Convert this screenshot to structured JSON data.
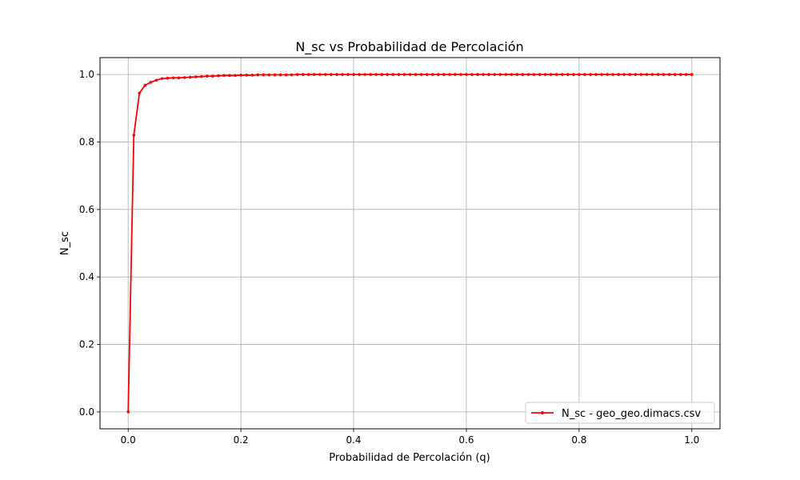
{
  "chart_data": {
    "type": "line",
    "title": "N_sc vs Probabilidad de Percolación",
    "xlabel": "Probabilidad de Percolación (q)",
    "ylabel": "N_sc",
    "xlim": [
      -0.05,
      1.05
    ],
    "ylim": [
      -0.05,
      1.05
    ],
    "xticks": [
      0.0,
      0.2,
      0.4,
      0.6,
      0.8,
      1.0
    ],
    "xtick_labels": [
      "0.0",
      "0.2",
      "0.4",
      "0.6",
      "0.8",
      "1.0"
    ],
    "yticks": [
      0.0,
      0.2,
      0.4,
      0.6,
      0.8,
      1.0
    ],
    "ytick_labels": [
      "0.0",
      "0.2",
      "0.4",
      "0.6",
      "0.8",
      "1.0"
    ],
    "grid": true,
    "legend_position": "lower-right",
    "series": [
      {
        "name": "N_sc - geo_geo.dimacs.csv",
        "color": "#ff0000",
        "marker": "dot",
        "x": [
          0.0,
          0.01,
          0.02,
          0.03,
          0.04,
          0.05,
          0.06,
          0.07,
          0.08,
          0.09,
          0.1,
          0.11,
          0.12,
          0.13,
          0.14,
          0.15,
          0.16,
          0.17,
          0.18,
          0.19,
          0.2,
          0.21,
          0.22,
          0.23,
          0.24,
          0.25,
          0.26,
          0.27,
          0.28,
          0.29,
          0.3,
          0.31,
          0.32,
          0.33,
          0.34,
          0.35,
          0.36,
          0.37,
          0.38,
          0.39,
          0.4,
          0.41,
          0.42,
          0.43,
          0.44,
          0.45,
          0.46,
          0.47,
          0.48,
          0.49,
          0.5,
          0.51,
          0.52,
          0.53,
          0.54,
          0.55,
          0.56,
          0.57,
          0.58,
          0.59,
          0.6,
          0.61,
          0.62,
          0.63,
          0.64,
          0.65,
          0.66,
          0.67,
          0.68,
          0.69,
          0.7,
          0.71,
          0.72,
          0.73,
          0.74,
          0.75,
          0.76,
          0.77,
          0.78,
          0.79,
          0.8,
          0.81,
          0.82,
          0.83,
          0.84,
          0.85,
          0.86,
          0.87,
          0.88,
          0.89,
          0.9,
          0.91,
          0.92,
          0.93,
          0.94,
          0.95,
          0.96,
          0.97,
          0.98,
          0.99,
          1.0
        ],
        "y": [
          0.0,
          0.82,
          0.945,
          0.968,
          0.977,
          0.983,
          0.988,
          0.989,
          0.99,
          0.99,
          0.991,
          0.992,
          0.993,
          0.994,
          0.995,
          0.995,
          0.996,
          0.997,
          0.997,
          0.997,
          0.998,
          0.998,
          0.998,
          0.999,
          0.999,
          0.999,
          0.999,
          0.999,
          0.999,
          0.999,
          1.0,
          1.0,
          1.0,
          1.0,
          1.0,
          1.0,
          1.0,
          1.0,
          1.0,
          1.0,
          1.0,
          1.0,
          1.0,
          1.0,
          1.0,
          1.0,
          1.0,
          1.0,
          1.0,
          1.0,
          1.0,
          1.0,
          1.0,
          1.0,
          1.0,
          1.0,
          1.0,
          1.0,
          1.0,
          1.0,
          1.0,
          1.0,
          1.0,
          1.0,
          1.0,
          1.0,
          1.0,
          1.0,
          1.0,
          1.0,
          1.0,
          1.0,
          1.0,
          1.0,
          1.0,
          1.0,
          1.0,
          1.0,
          1.0,
          1.0,
          1.0,
          1.0,
          1.0,
          1.0,
          1.0,
          1.0,
          1.0,
          1.0,
          1.0,
          1.0,
          1.0,
          1.0,
          1.0,
          1.0,
          1.0,
          1.0,
          1.0,
          1.0,
          1.0,
          1.0,
          1.0
        ]
      }
    ]
  }
}
